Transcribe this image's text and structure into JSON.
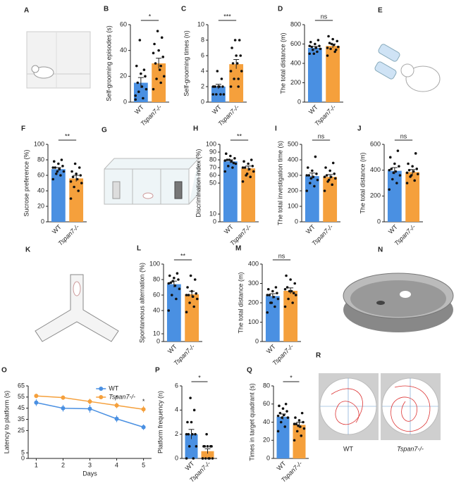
{
  "chart_data": [
    {
      "panel": "B",
      "type": "bar",
      "ylabel": "Self-grooming  episodes (s)",
      "categories": [
        "WT",
        "Tspan7-/-"
      ],
      "values": [
        15,
        30
      ],
      "sem": [
        4,
        4
      ],
      "ylim": [
        0,
        60
      ],
      "yticks": [
        0,
        20,
        40,
        60
      ],
      "colors": [
        "#4a90e2",
        "#f5a03c"
      ],
      "significance": "*",
      "points": [
        [
          5,
          3,
          8,
          10,
          12,
          15,
          20,
          22,
          28,
          25,
          48,
          2
        ],
        [
          10,
          15,
          18,
          20,
          25,
          30,
          35,
          40,
          45,
          50,
          55,
          38,
          28
        ]
      ]
    },
    {
      "panel": "C",
      "type": "bar",
      "ylabel": "Self-grooming  times (n)",
      "categories": [
        "WT",
        "Tspan7-/-"
      ],
      "values": [
        2,
        4.9
      ],
      "sem": [
        0.3,
        0.6
      ],
      "ylim": [
        0,
        10
      ],
      "yticks": [
        0,
        2,
        4,
        6,
        8,
        10
      ],
      "colors": [
        "#4a90e2",
        "#f5a03c"
      ],
      "significance": "***",
      "points": [
        [
          1,
          1,
          1,
          1,
          2,
          2,
          2,
          2,
          2,
          3,
          4,
          2
        ],
        [
          2,
          3,
          3,
          4,
          5,
          5,
          6,
          6,
          7,
          8,
          8,
          4,
          2
        ]
      ]
    },
    {
      "panel": "D",
      "type": "bar",
      "ylabel": "The total distance (m)",
      "categories": [
        "WT",
        "Tspan7-/-"
      ],
      "values": [
        560,
        580
      ],
      "sem": [
        15,
        20
      ],
      "ylim": [
        0,
        800
      ],
      "yticks": [
        0,
        200,
        400,
        600,
        800
      ],
      "colors": [
        "#4a90e2",
        "#f5a03c"
      ],
      "significance": "ns",
      "points": [
        [
          500,
          520,
          540,
          550,
          560,
          570,
          580,
          600,
          620,
          640,
          500,
          580
        ],
        [
          480,
          520,
          550,
          570,
          590,
          610,
          630,
          650,
          680,
          540,
          600,
          560
        ]
      ]
    },
    {
      "panel": "F",
      "type": "bar",
      "ylabel": "Sucrose preference (%)",
      "categories": [
        "WT",
        "Tspan7-/-"
      ],
      "values": [
        68,
        56
      ],
      "sem": [
        2,
        4
      ],
      "ylim": [
        0,
        100
      ],
      "yticks": [
        0,
        20,
        40,
        60,
        80,
        100
      ],
      "colors": [
        "#4a90e2",
        "#f5a03c"
      ],
      "significance": "**",
      "points": [
        [
          55,
          60,
          62,
          65,
          68,
          70,
          72,
          75,
          78,
          80,
          65,
          70
        ],
        [
          30,
          40,
          45,
          50,
          55,
          58,
          60,
          62,
          65,
          70,
          75,
          52
        ]
      ]
    },
    {
      "panel": "H",
      "type": "bar",
      "ylabel": "Discrimination index (%)",
      "categories": [
        "WT",
        "Tspan7-/-"
      ],
      "values": [
        78,
        69
      ],
      "sem": [
        2,
        3
      ],
      "ylim": [
        0,
        100
      ],
      "yticks": [
        0,
        10,
        50,
        60,
        70,
        80,
        90,
        100
      ],
      "colors": [
        "#4a90e2",
        "#f5a03c"
      ],
      "significance": "**",
      "points": [
        [
          65,
          70,
          72,
          75,
          78,
          80,
          82,
          85,
          88,
          76,
          80,
          79
        ],
        [
          52,
          58,
          60,
          65,
          68,
          70,
          72,
          75,
          78,
          80,
          62,
          70
        ]
      ]
    },
    {
      "panel": "I",
      "type": "bar",
      "ylabel": "The total investigation time (s)",
      "categories": [
        "WT",
        "Tspan7-/-"
      ],
      "values": [
        295,
        290
      ],
      "sem": [
        20,
        15
      ],
      "ylim": [
        0,
        500
      ],
      "yticks": [
        0,
        100,
        200,
        300,
        400,
        500
      ],
      "colors": [
        "#4a90e2",
        "#f5a03c"
      ],
      "significance": "ns",
      "points": [
        [
          200,
          230,
          250,
          270,
          290,
          300,
          310,
          330,
          350,
          420,
          280,
          300
        ],
        [
          200,
          240,
          260,
          280,
          290,
          300,
          310,
          330,
          350,
          380,
          270,
          290
        ]
      ]
    },
    {
      "panel": "J",
      "type": "bar",
      "ylabel": "The total distance (m)",
      "categories": [
        "WT",
        "Tspan7-/-"
      ],
      "values": [
        395,
        385
      ],
      "sem": [
        25,
        20
      ],
      "ylim": [
        0,
        600
      ],
      "yticks": [
        0,
        200,
        400,
        600
      ],
      "colors": [
        "#4a90e2",
        "#f5a03c"
      ],
      "significance": "ns",
      "points": [
        [
          250,
          300,
          330,
          360,
          390,
          410,
          430,
          450,
          500,
          550,
          380,
          400
        ],
        [
          300,
          320,
          350,
          370,
          390,
          400,
          410,
          430,
          450,
          530,
          360,
          380
        ]
      ]
    },
    {
      "panel": "L",
      "type": "bar",
      "ylabel": "Spontaneous alternation (%)",
      "categories": [
        "WT",
        "Tspan7-/-"
      ],
      "values": [
        74,
        61
      ],
      "sem": [
        4,
        4
      ],
      "ylim": [
        0,
        100
      ],
      "yticks": [
        0,
        10,
        40,
        60,
        80,
        100
      ],
      "colors": [
        "#4a90e2",
        "#f5a03c"
      ],
      "significance": "**",
      "points": [
        [
          40,
          55,
          60,
          68,
          72,
          76,
          80,
          82,
          85,
          88,
          78,
          75
        ],
        [
          38,
          45,
          50,
          55,
          58,
          60,
          62,
          65,
          70,
          80,
          85,
          60
        ]
      ]
    },
    {
      "panel": "M",
      "type": "bar",
      "ylabel": "The total distance (m)",
      "categories": [
        "WT",
        "Tspan7-/-"
      ],
      "values": [
        235,
        262
      ],
      "sem": [
        12,
        15
      ],
      "ylim": [
        0,
        400
      ],
      "yticks": [
        0,
        100,
        200,
        300,
        400
      ],
      "colors": [
        "#4a90e2",
        "#f5a03c"
      ],
      "significance": "ns",
      "points": [
        [
          150,
          180,
          200,
          220,
          230,
          240,
          250,
          260,
          270,
          280,
          200,
          240
        ],
        [
          180,
          200,
          220,
          240,
          260,
          280,
          300,
          320,
          340,
          250,
          260,
          270
        ]
      ]
    },
    {
      "panel": "O",
      "type": "line",
      "ylabel": "Latency to platform (s)",
      "xlabel": "Days",
      "x": [
        1,
        2,
        3,
        4,
        5
      ],
      "xlim": [
        0.7,
        5.3
      ],
      "xticks": [
        1,
        2,
        3,
        4,
        5
      ],
      "ylim": [
        0,
        65
      ],
      "yticks": [
        0,
        5,
        25,
        35,
        45,
        55,
        65
      ],
      "legend": "upper right",
      "series": [
        {
          "name": "WT",
          "color": "#4a90e2",
          "values": [
            50,
            45,
            44.5,
            35.5,
            28
          ],
          "sem": [
            3,
            3,
            3.5,
            3,
            2.5
          ]
        },
        {
          "name": "Tspan7-/-",
          "color": "#f5a03c",
          "values": [
            56,
            54.5,
            51,
            47.5,
            44
          ],
          "sem": [
            2,
            2,
            2.5,
            2.5,
            3
          ]
        }
      ],
      "annotations": [
        {
          "x": 4,
          "text": "*"
        },
        {
          "x": 5,
          "text": "*"
        }
      ]
    },
    {
      "panel": "P",
      "type": "bar",
      "ylabel": "Platform frequency (n)",
      "categories": [
        "WT",
        "Tspan7-/-"
      ],
      "values": [
        2.0,
        0.6
      ],
      "sem": [
        0.4,
        0.2
      ],
      "ylim": [
        0,
        6
      ],
      "yticks": [
        0,
        2,
        4,
        6
      ],
      "colors": [
        "#4a90e2",
        "#f5a03c"
      ],
      "significance": "*",
      "points": [
        [
          0,
          0,
          1,
          1,
          2,
          2,
          2,
          3,
          3,
          4,
          5,
          2
        ],
        [
          0,
          0,
          0,
          0,
          0,
          1,
          1,
          1,
          1,
          1,
          2,
          0
        ]
      ]
    },
    {
      "panel": "Q",
      "type": "bar",
      "ylabel": "Times in target quadrant (s)",
      "categories": [
        "WT",
        "Tspan7-/-"
      ],
      "values": [
        46,
        37
      ],
      "sem": [
        3,
        3
      ],
      "ylim": [
        0,
        80
      ],
      "yticks": [
        0,
        20,
        40,
        60,
        80
      ],
      "colors": [
        "#4a90e2",
        "#f5a03c"
      ],
      "significance": "*",
      "points": [
        [
          30,
          35,
          40,
          45,
          48,
          50,
          52,
          55,
          58,
          60,
          45,
          47
        ],
        [
          20,
          25,
          30,
          33,
          35,
          38,
          40,
          42,
          45,
          50,
          36,
          38
        ]
      ]
    }
  ],
  "figures": [
    {
      "panel": "A"
    },
    {
      "panel": "E"
    },
    {
      "panel": "G"
    },
    {
      "panel": "K"
    },
    {
      "panel": "N"
    },
    {
      "panel": "R",
      "labels": [
        "WT",
        "Tspan7-/-"
      ]
    }
  ]
}
